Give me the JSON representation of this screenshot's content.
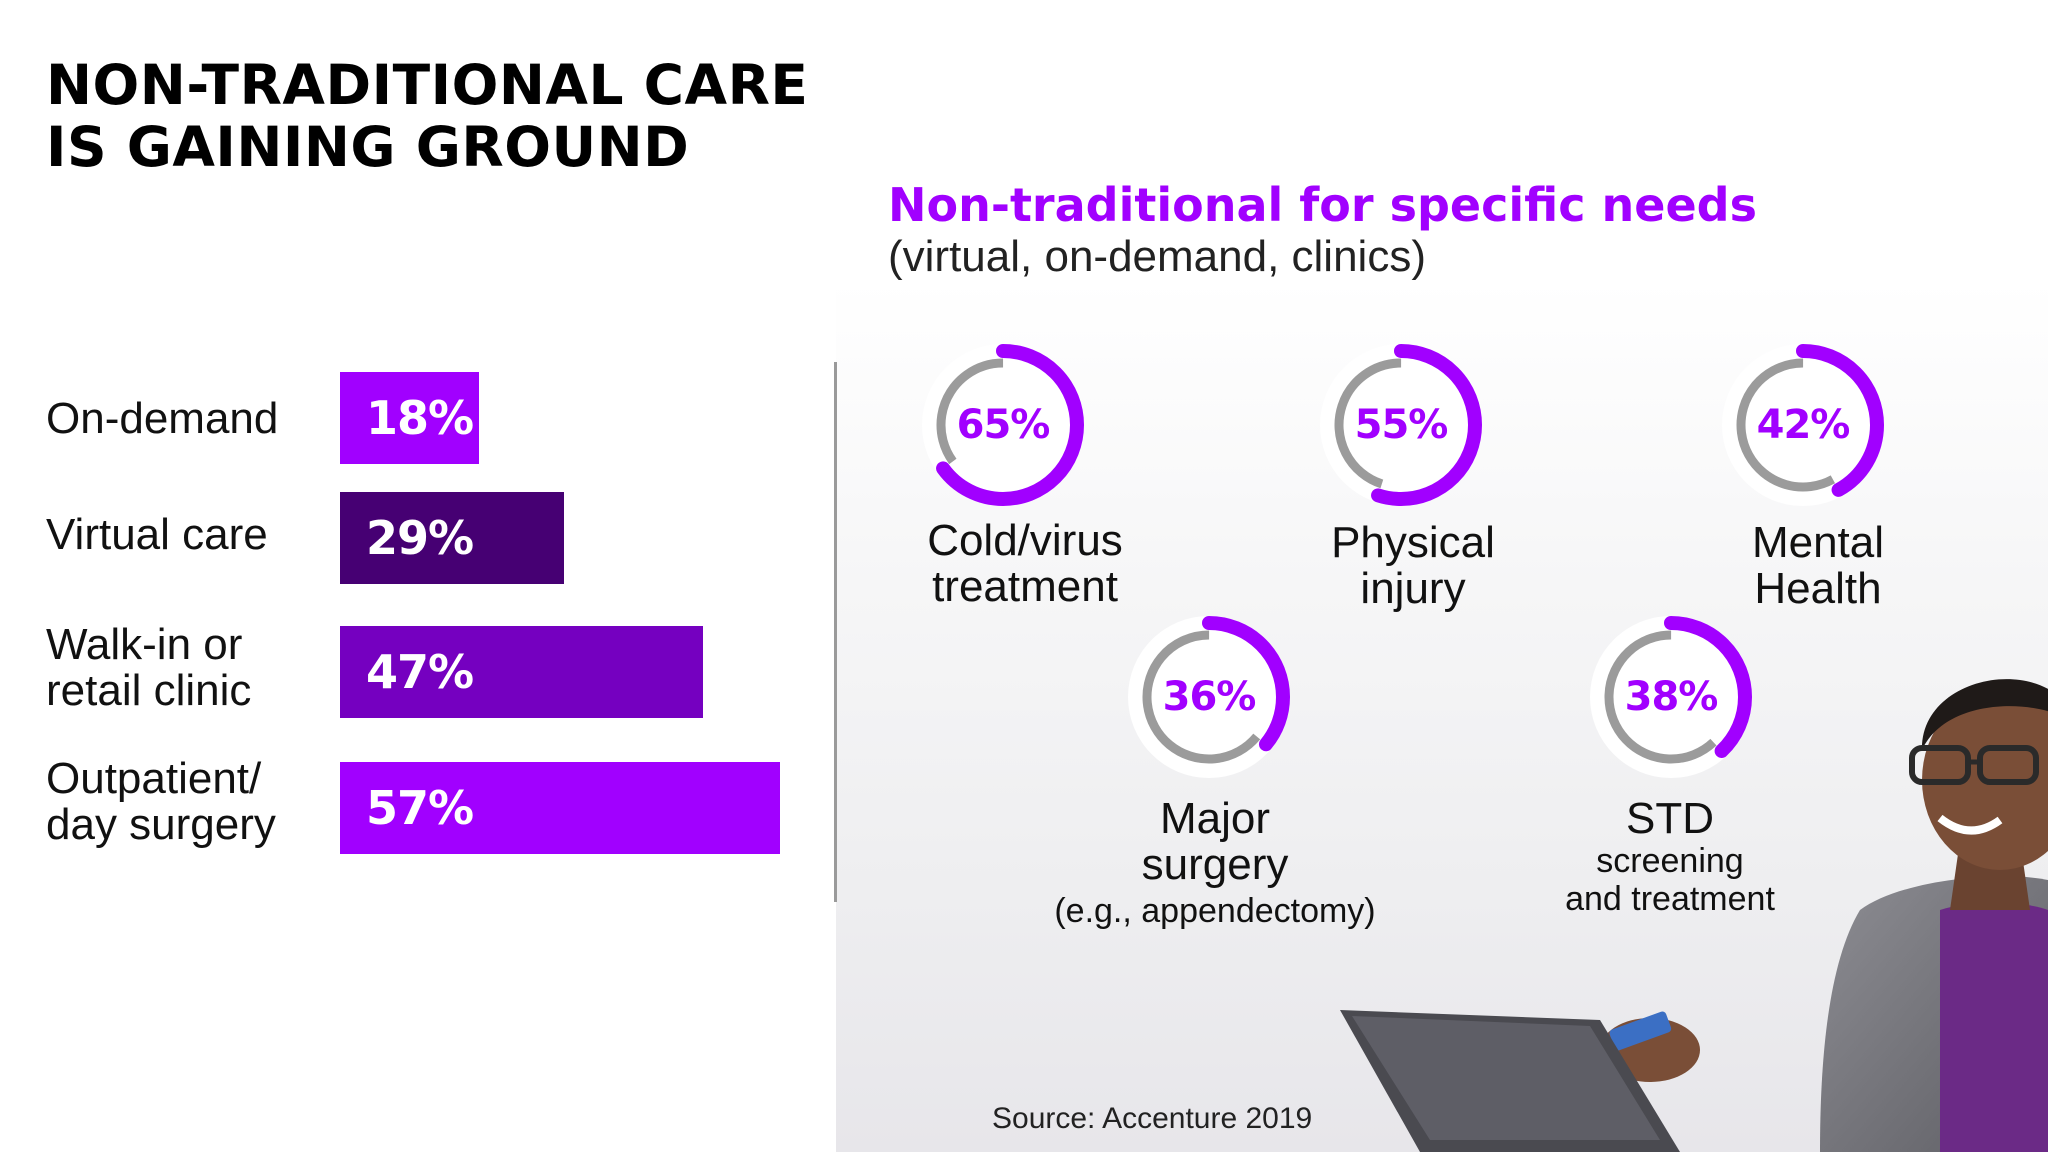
{
  "title": {
    "line1": "NON-TRADITIONAL CARE",
    "line2": "IS GAINING GROUND"
  },
  "chart_data": [
    {
      "type": "bar",
      "orientation": "horizontal",
      "categories": [
        "On-demand",
        "Virtual care",
        "Walk-in or retail clinic",
        "Outpatient/ day surgery"
      ],
      "category_lines": [
        [
          "On-demand"
        ],
        [
          "Virtual care"
        ],
        [
          "Walk-in or",
          "retail clinic"
        ],
        [
          "Outpatient/",
          "day surgery"
        ]
      ],
      "values": [
        18,
        29,
        47,
        57
      ],
      "value_labels": [
        "18%",
        "29%",
        "47%",
        "57%"
      ],
      "bar_colors": [
        "#a100ff",
        "#460073",
        "#7500c0",
        "#a100ff"
      ],
      "xlim": [
        0,
        57
      ],
      "grid": false
    },
    {
      "type": "pie",
      "variant": "donut",
      "title": "Non-traditional for specific needs",
      "subtitle": "(virtual, on-demand, clinics)",
      "items": [
        {
          "name": "Cold/virus treatment",
          "lines": [
            "Cold/virus",
            "treatment"
          ],
          "note": "",
          "value": 65,
          "label": "65%"
        },
        {
          "name": "Physical injury",
          "lines": [
            "Physical",
            "injury"
          ],
          "note": "",
          "value": 55,
          "label": "55%"
        },
        {
          "name": "Mental Health",
          "lines": [
            "Mental",
            "Health"
          ],
          "note": "",
          "value": 42,
          "label": "42%"
        },
        {
          "name": "Major surgery",
          "lines": [
            "Major",
            "surgery"
          ],
          "note": "(e.g., appendectomy)",
          "value": 36,
          "label": "36%"
        },
        {
          "name": "STD screening and treatment",
          "lines": [
            "STD"
          ],
          "note_lines": [
            "screening",
            "and treatment"
          ],
          "value": 38,
          "label": "38%"
        }
      ],
      "colors": {
        "value": "#a100ff",
        "remainder": "#9b9b9b"
      }
    }
  ],
  "source": "Source: Accenture 2019",
  "photo": {
    "icon": "person-with-laptop-photo"
  }
}
